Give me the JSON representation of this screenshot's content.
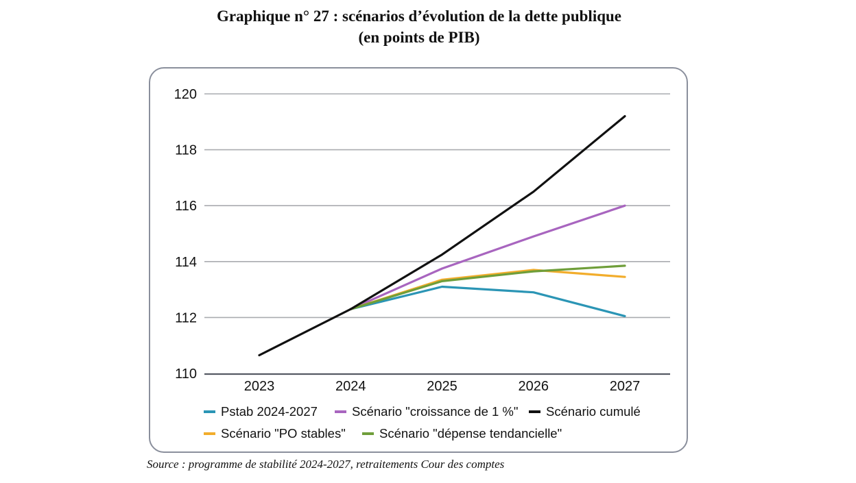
{
  "title_line1": "Graphique n° 27 : scénarios d’évolution de la dette publique",
  "title_line2": "(en points de PIB)",
  "source": "Source : programme de stabilité 2024-2027, retraitements Cour des comptes",
  "chart_data": {
    "type": "line",
    "title": "Graphique n° 27 : scénarios d’évolution de la dette publique (en points de PIB)",
    "xlabel": "",
    "ylabel": "",
    "categories": [
      "2023",
      "2024",
      "2025",
      "2026",
      "2027"
    ],
    "yticks": [
      "110",
      "112",
      "114",
      "116",
      "118",
      "120"
    ],
    "ylim": [
      110,
      120
    ],
    "grid": "horizontal",
    "legend_position": "bottom",
    "series": [
      {
        "name": "Pstab 2024-2027",
        "color": "#2b95b5",
        "values": [
          null,
          112.3,
          113.1,
          112.9,
          112.05
        ]
      },
      {
        "name": "Scénario \"croissance de 1 %\"",
        "color": "#a865bf",
        "values": [
          null,
          112.3,
          113.75,
          114.9,
          116.0
        ]
      },
      {
        "name": "Scénario cumulé",
        "color": "#111111",
        "values": [
          110.65,
          112.3,
          114.25,
          116.5,
          119.2
        ]
      },
      {
        "name": "Scénario \"PO stables\"",
        "color": "#f2ad2c",
        "values": [
          null,
          112.3,
          113.35,
          113.7,
          113.45
        ]
      },
      {
        "name": "Scénario \"dépense tendancielle\"",
        "color": "#6f9e3a",
        "values": [
          null,
          112.3,
          113.3,
          113.65,
          113.85
        ]
      }
    ]
  }
}
